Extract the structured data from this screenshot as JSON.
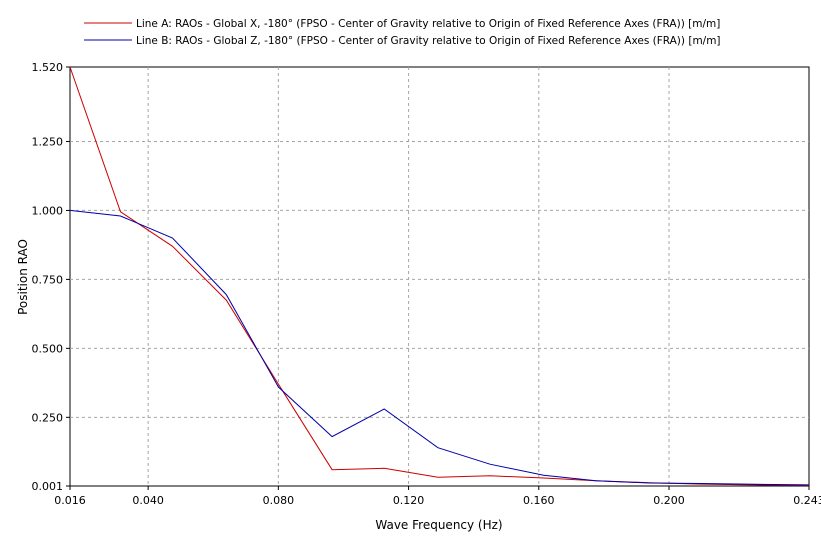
{
  "chart_data": {
    "type": "line",
    "title": "",
    "xlabel": "Wave Frequency (Hz)",
    "ylabel": "Position RAO",
    "xlim": [
      0.016,
      0.243
    ],
    "ylim": [
      0.001,
      1.52
    ],
    "x_ticks": [
      {
        "value": 0.016,
        "label": "0.016"
      },
      {
        "value": 0.04,
        "label": "0.040"
      },
      {
        "value": 0.08,
        "label": "0.080"
      },
      {
        "value": 0.12,
        "label": "0.120"
      },
      {
        "value": 0.16,
        "label": "0.160"
      },
      {
        "value": 0.2,
        "label": "0.200"
      },
      {
        "value": 0.243,
        "label": "0.243"
      }
    ],
    "y_ticks": [
      {
        "value": 0.001,
        "label": "0.001"
      },
      {
        "value": 0.25,
        "label": "0.250"
      },
      {
        "value": 0.5,
        "label": "0.500"
      },
      {
        "value": 0.75,
        "label": "0.750"
      },
      {
        "value": 1.0,
        "label": "1.000"
      },
      {
        "value": 1.25,
        "label": "1.250"
      },
      {
        "value": 1.52,
        "label": "1.520"
      }
    ],
    "grid": true,
    "legend_position": "top",
    "series": [
      {
        "name": "Line A: RAOs - Global X, -180° (FPSO - Center of Gravity relative to Origin of Fixed Reference Axes (FRA)) [m/m]",
        "color": "#cc0000",
        "points": [
          {
            "x": 0.016,
            "y": 1.52
          },
          {
            "x": 0.0315,
            "y": 0.995
          },
          {
            "x": 0.0475,
            "y": 0.87
          },
          {
            "x": 0.064,
            "y": 0.675
          },
          {
            "x": 0.08,
            "y": 0.37
          },
          {
            "x": 0.0965,
            "y": 0.06
          },
          {
            "x": 0.1125,
            "y": 0.065
          },
          {
            "x": 0.129,
            "y": 0.033
          },
          {
            "x": 0.145,
            "y": 0.038
          },
          {
            "x": 0.1615,
            "y": 0.03
          },
          {
            "x": 0.1775,
            "y": 0.02
          },
          {
            "x": 0.194,
            "y": 0.013
          },
          {
            "x": 0.21,
            "y": 0.008
          },
          {
            "x": 0.2265,
            "y": 0.005
          },
          {
            "x": 0.243,
            "y": 0.003
          }
        ]
      },
      {
        "name": "Line B: RAOs - Global Z, -180° (FPSO - Center of Gravity relative to Origin of Fixed Reference Axes (FRA)) [m/m]",
        "color": "#0000aa",
        "points": [
          {
            "x": 0.016,
            "y": 1.0
          },
          {
            "x": 0.0315,
            "y": 0.98
          },
          {
            "x": 0.0475,
            "y": 0.9
          },
          {
            "x": 0.064,
            "y": 0.695
          },
          {
            "x": 0.08,
            "y": 0.36
          },
          {
            "x": 0.0965,
            "y": 0.18
          },
          {
            "x": 0.1125,
            "y": 0.28
          },
          {
            "x": 0.129,
            "y": 0.14
          },
          {
            "x": 0.145,
            "y": 0.08
          },
          {
            "x": 0.1615,
            "y": 0.04
          },
          {
            "x": 0.1775,
            "y": 0.02
          },
          {
            "x": 0.194,
            "y": 0.012
          },
          {
            "x": 0.21,
            "y": 0.01
          },
          {
            "x": 0.2265,
            "y": 0.007
          },
          {
            "x": 0.243,
            "y": 0.005
          }
        ]
      }
    ]
  }
}
